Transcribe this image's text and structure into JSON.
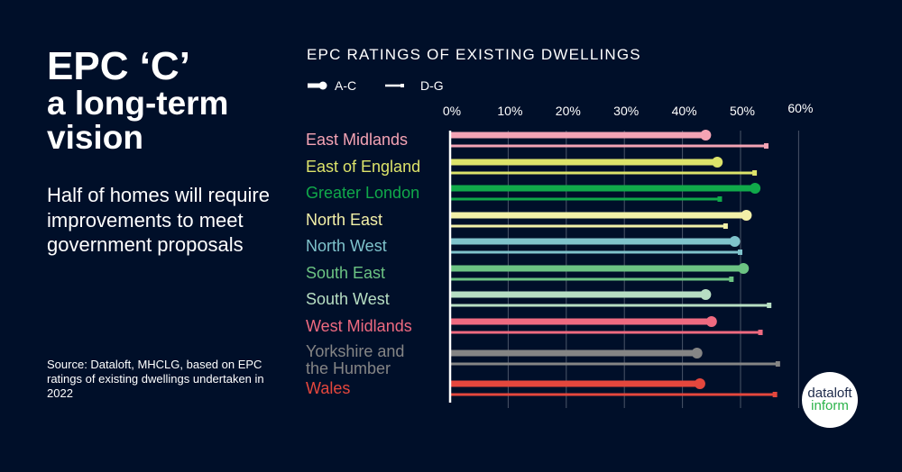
{
  "title": {
    "line1": "EPC ‘C’",
    "line2": "a long-term",
    "line3": "vision"
  },
  "subtitle": "Half of homes will require improvements to meet government proposals",
  "source": "Source: Dataloft, MHCLG, based on EPC ratings of existing dwellings undertaken in 2022",
  "logo": {
    "line1": "dataloft",
    "line2": "inform"
  },
  "chart_data": {
    "type": "bar",
    "orientation": "horizontal",
    "title": "EPC RATINGS OF EXISTING DWELLINGS",
    "xlim": [
      0,
      60
    ],
    "x_ticks": [
      "0%",
      "10%",
      "20%",
      "30%",
      "40%",
      "50%",
      "60%"
    ],
    "grid": true,
    "legend": {
      "placement": "top-left",
      "entries": [
        "A-C",
        "D-G"
      ]
    },
    "categories": [
      "East Midlands",
      "East of England",
      "Greater London",
      "North East",
      "North West",
      "South East",
      "South West",
      "West Midlands",
      "Yorkshire and the Humber",
      "Wales"
    ],
    "colors": [
      "#f4a3b4",
      "#dde36a",
      "#10a94a",
      "#f3f0a8",
      "#7fc3cc",
      "#6cc383",
      "#b7dec3",
      "#ef6a80",
      "#858585",
      "#e5473d"
    ],
    "series": [
      {
        "name": "A-C",
        "values": [
          44,
          46,
          52.5,
          51,
          49,
          50.5,
          44,
          45,
          42.5,
          43
        ]
      },
      {
        "name": "D-G",
        "values": [
          54.5,
          52.5,
          46.5,
          47.5,
          50,
          48.5,
          55,
          53.5,
          56.5,
          56
        ]
      }
    ]
  }
}
